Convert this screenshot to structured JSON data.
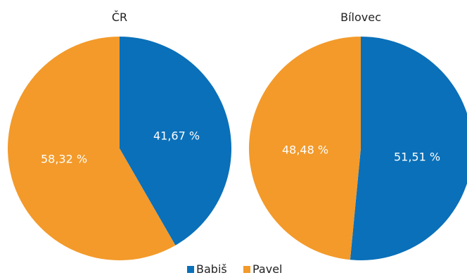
{
  "chart_data": [
    {
      "type": "pie",
      "title": "ČR",
      "slices": [
        {
          "name": "Babiš",
          "value": 41.67,
          "label": "41,67 %",
          "color": "#0a70b9"
        },
        {
          "name": "Pavel",
          "value": 58.32,
          "label": "58,32 %",
          "color": "#f39a2a"
        }
      ]
    },
    {
      "type": "pie",
      "title": "Bílovec",
      "slices": [
        {
          "name": "Babiš",
          "value": 51.51,
          "label": "51,51 %",
          "color": "#0a70b9"
        },
        {
          "name": "Pavel",
          "value": 48.48,
          "label": "48,48 %",
          "color": "#f39a2a"
        }
      ]
    }
  ],
  "legend": {
    "placement": "bottom",
    "items": [
      {
        "label": "Babiš",
        "color": "#0a70b9"
      },
      {
        "label": "Pavel",
        "color": "#f39a2a"
      }
    ]
  }
}
